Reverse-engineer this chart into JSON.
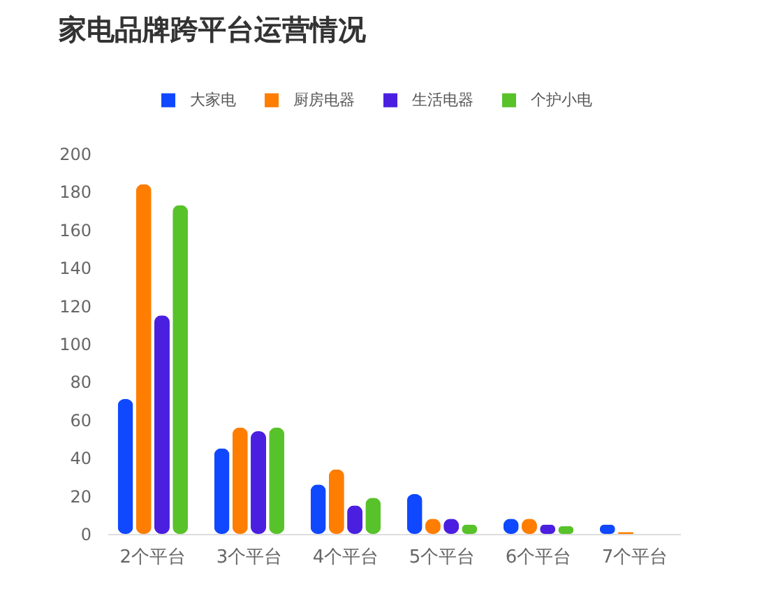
{
  "chart_data": {
    "type": "bar",
    "title": "家电品牌跨平台运营情况",
    "categories": [
      "2个平台",
      "3个平台",
      "4个平台",
      "5个平台",
      "6个平台",
      "7个平台"
    ],
    "series": [
      {
        "name": "大家电",
        "color": "#1048ff",
        "values": [
          71,
          45,
          26,
          21,
          8,
          5
        ]
      },
      {
        "name": "厨房电器",
        "color": "#ff7d00",
        "values": [
          184,
          56,
          34,
          8,
          8,
          1
        ]
      },
      {
        "name": "生活电器",
        "color": "#4b1fe0",
        "values": [
          115,
          54,
          15,
          8,
          5,
          null
        ]
      },
      {
        "name": "个护小电",
        "color": "#58c22a",
        "values": [
          173,
          56,
          19,
          5,
          4,
          null
        ]
      }
    ],
    "ylim": [
      0,
      200
    ],
    "yticks": [
      0,
      20,
      40,
      60,
      80,
      100,
      120,
      140,
      160,
      180,
      200
    ],
    "legend": "top"
  }
}
